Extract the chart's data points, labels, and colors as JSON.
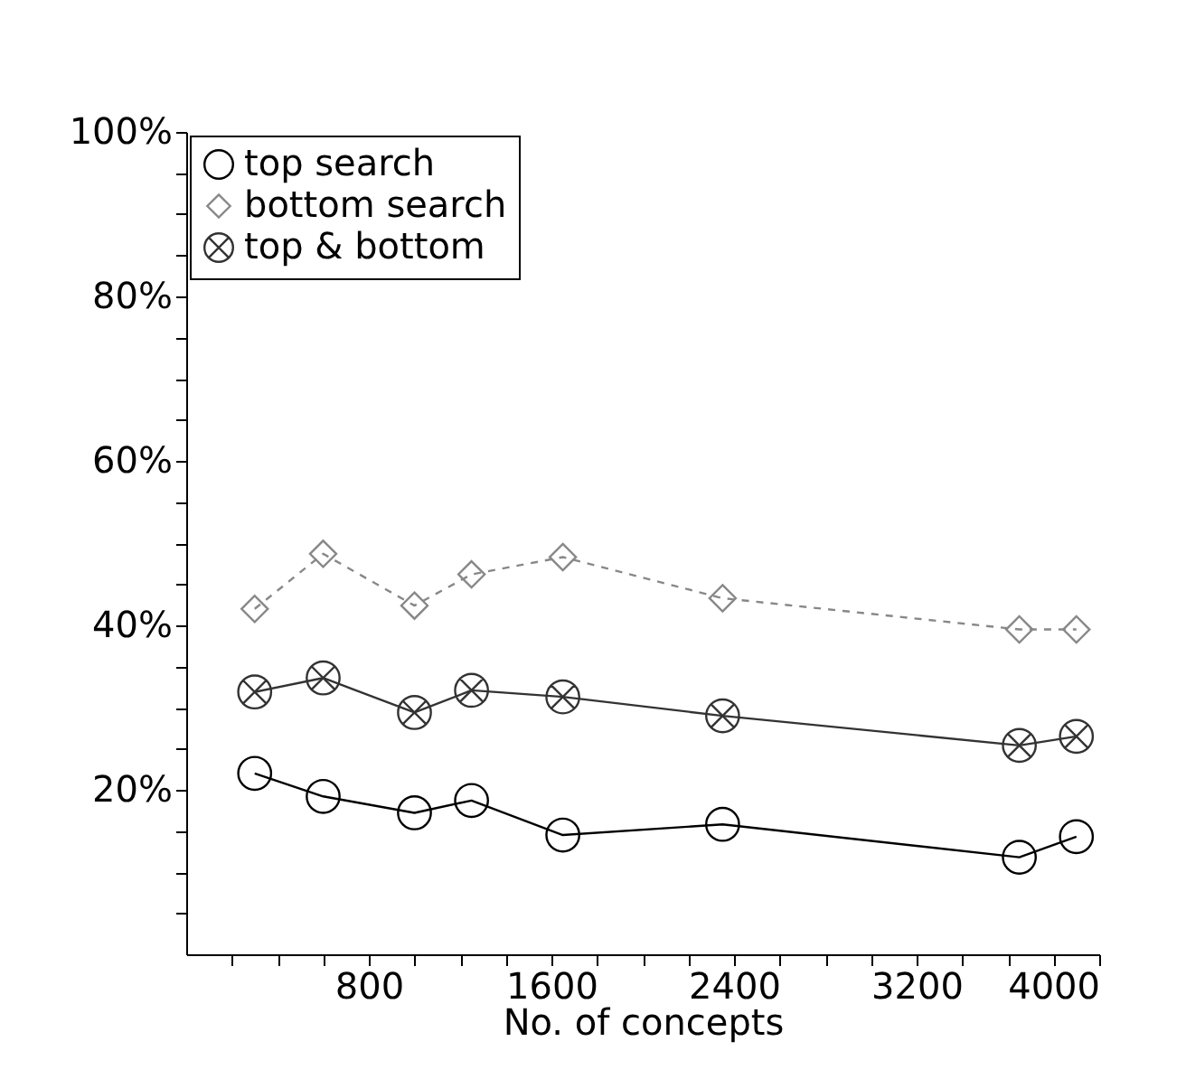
{
  "chart_data": {
    "type": "line",
    "xlabel": "No. of concepts",
    "x": [
      300,
      600,
      1000,
      1250,
      1650,
      2350,
      3650,
      3900
    ],
    "series": [
      {
        "name": "top search",
        "color": "#000000",
        "marker": "circle",
        "line_style": "solid",
        "values": [
          22.0,
          19.2,
          17.2,
          18.7,
          14.5,
          15.8,
          11.8,
          14.3
        ]
      },
      {
        "name": "bottom search",
        "color": "#888888",
        "marker": "diamond",
        "line_style": "dashed",
        "values": [
          42.0,
          48.7,
          42.4,
          46.2,
          48.3,
          43.3,
          39.5,
          39.5
        ]
      },
      {
        "name": "top & bottom",
        "color": "#333333",
        "marker": "cross",
        "line_style": "solid",
        "values": [
          31.9,
          33.6,
          29.4,
          32.1,
          31.3,
          29.0,
          25.4,
          26.5
        ]
      }
    ],
    "xlim": [
      0,
      4000
    ],
    "xticks": [
      {
        "value": 200,
        "label": null
      },
      {
        "value": 400,
        "label": null
      },
      {
        "value": 600,
        "label": null
      },
      800,
      {
        "value": 1000,
        "label": null
      },
      {
        "value": 1200,
        "label": null
      },
      {
        "value": 1400,
        "label": null
      },
      1600,
      {
        "value": 1800,
        "label": null
      },
      {
        "value": 2000,
        "label": null
      },
      {
        "value": 2200,
        "label": null
      },
      2400,
      {
        "value": 2600,
        "label": null
      },
      {
        "value": 2800,
        "label": null
      },
      {
        "value": 3000,
        "label": null
      },
      3200,
      {
        "value": 3400,
        "label": null
      },
      {
        "value": 3600,
        "label": null
      },
      {
        "value": 3800,
        "label": null
      },
      4000
    ],
    "ylim": [
      0,
      100
    ],
    "yticks": [
      {
        "value": 5,
        "label": null
      },
      {
        "value": 10,
        "label": null
      },
      {
        "value": 15,
        "label": null
      },
      {
        "value": 20,
        "label": "20%"
      },
      {
        "value": 25,
        "label": null
      },
      {
        "value": 30,
        "label": null
      },
      {
        "value": 35,
        "label": null
      },
      {
        "value": 40,
        "label": "40%"
      },
      {
        "value": 45,
        "label": null
      },
      {
        "value": 50,
        "label": null
      },
      {
        "value": 55,
        "label": null
      },
      {
        "value": 60,
        "label": "60%"
      },
      {
        "value": 65,
        "label": null
      },
      {
        "value": 70,
        "label": null
      },
      {
        "value": 75,
        "label": null
      },
      {
        "value": 80,
        "label": "80%"
      },
      {
        "value": 85,
        "label": null
      },
      {
        "value": 90,
        "label": null
      },
      {
        "value": 95,
        "label": null
      },
      {
        "value": 100,
        "label": "100%"
      }
    ],
    "grid": false,
    "legend": "top left"
  }
}
